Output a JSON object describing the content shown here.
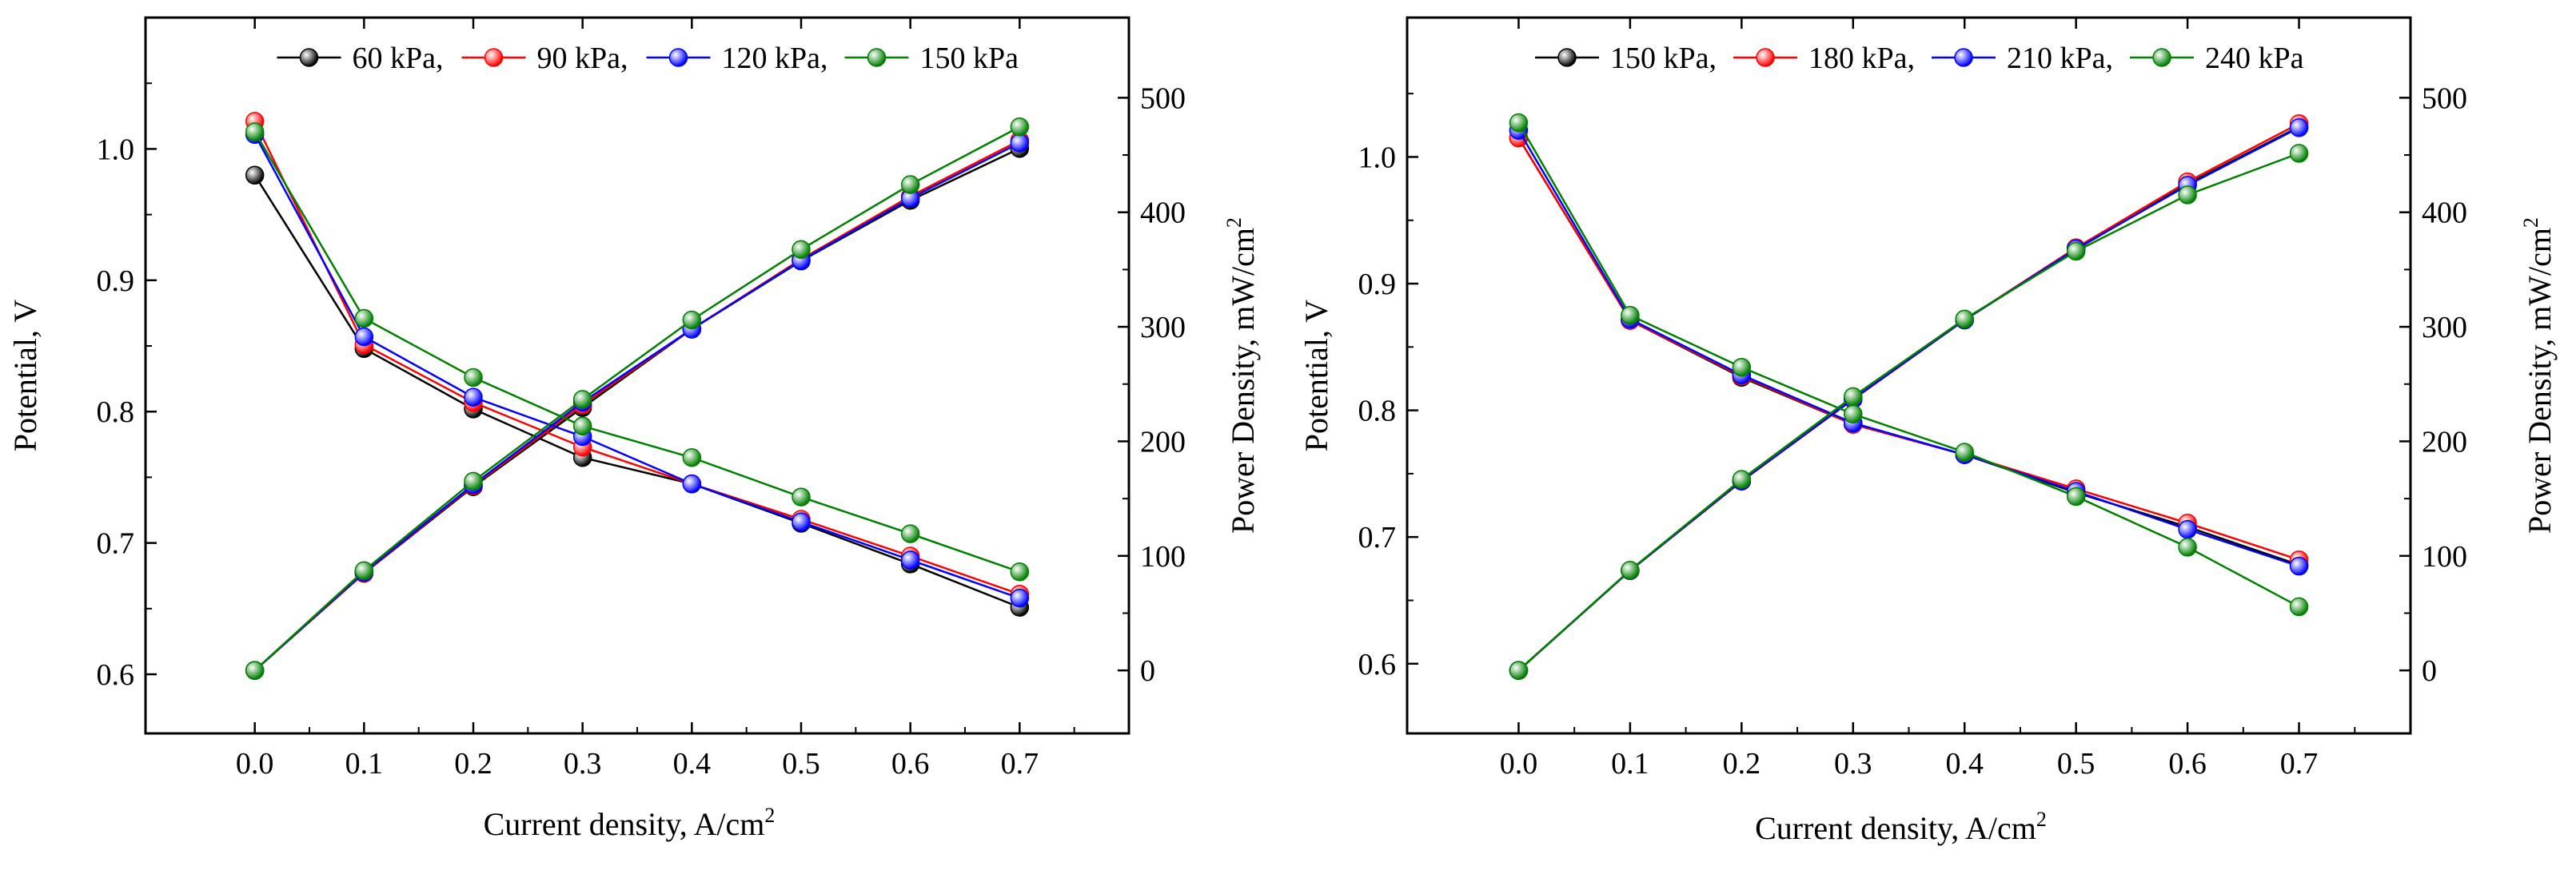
{
  "colors": {
    "60 kPa": "#000000",
    "90 kPa": "#ff0000",
    "120 kPa": "#0000ff",
    "150 kPa": "#008000",
    "180 kPa": "#ff0000",
    "210 kPa": "#0000ff",
    "240 kPa": "#008000"
  },
  "chart_data": [
    {
      "type": "line",
      "xlabel": "Current density, A/cm",
      "xlabel_sup": "2",
      "ylabel": "Potential, V",
      "y2label": "Power Density, mW/cm",
      "y2label_sup": "2",
      "xlim": [
        -0.1,
        0.8
      ],
      "ylim": [
        0.555,
        1.1
      ],
      "y2lim": [
        -55,
        570
      ],
      "xticks": [
        "0.0",
        "0.1",
        "0.2",
        "0.3",
        "0.4",
        "0.5",
        "0.6",
        "0.7"
      ],
      "yticks": [
        "0.6",
        "0.7",
        "0.8",
        "0.9",
        "1.0"
      ],
      "y2ticks": [
        "0",
        "100",
        "200",
        "300",
        "400",
        "500"
      ],
      "legend_placement": "top",
      "legend_labels": [
        "60 kPa,",
        "90 kPa,",
        "120 kPa,",
        "150 kPa"
      ],
      "x": [
        0.0,
        0.1,
        0.2,
        0.3,
        0.4,
        0.5,
        0.6,
        0.7
      ],
      "series": [
        {
          "name": "60 kPa",
          "color": "#000000",
          "potential": [
            0.98,
            0.848,
            0.802,
            0.765,
            0.745,
            0.715,
            0.684,
            0.651
          ],
          "power": [
            0,
            84.8,
            160.4,
            229.5,
            298,
            357.5,
            410.4,
            455.7
          ]
        },
        {
          "name": "90 kPa",
          "color": "#ff0000",
          "potential": [
            1.021,
            0.851,
            0.807,
            0.773,
            0.745,
            0.718,
            0.69,
            0.661
          ],
          "power": [
            0,
            85.1,
            161.4,
            231.9,
            298,
            359,
            414,
            462.7
          ]
        },
        {
          "name": "120 kPa",
          "color": "#0000ff",
          "potential": [
            1.011,
            0.857,
            0.811,
            0.781,
            0.745,
            0.716,
            0.687,
            0.658
          ],
          "power": [
            0,
            85.7,
            162.2,
            234.3,
            298,
            358,
            412.2,
            460.6
          ]
        },
        {
          "name": "150 kPa",
          "color": "#008000",
          "potential": [
            1.013,
            0.871,
            0.826,
            0.789,
            0.765,
            0.735,
            0.707,
            0.678
          ],
          "power": [
            0,
            87.1,
            165.2,
            236.7,
            306,
            367.5,
            424.2,
            474.6
          ]
        }
      ]
    },
    {
      "type": "line",
      "xlabel": "Current density, A/cm",
      "xlabel_sup": "2",
      "ylabel": "Potential, V",
      "y2label": "Power Density, mW/cm",
      "y2label_sup": "2",
      "xlim": [
        -0.1,
        0.8
      ],
      "ylim": [
        0.545,
        1.11
      ],
      "y2lim": [
        -55,
        570
      ],
      "xticks": [
        "0.0",
        "0.1",
        "0.2",
        "0.3",
        "0.4",
        "0.5",
        "0.6",
        "0.7"
      ],
      "yticks": [
        "0.6",
        "0.7",
        "0.8",
        "0.9",
        "1.0"
      ],
      "y2ticks": [
        "0",
        "100",
        "200",
        "300",
        "400",
        "500"
      ],
      "legend_placement": "top",
      "legend_labels": [
        "150 kPa,",
        "180 kPa,",
        "210 kPa,",
        "240 kPa"
      ],
      "x": [
        0.0,
        0.1,
        0.2,
        0.3,
        0.4,
        0.5,
        0.6,
        0.7
      ],
      "series": [
        {
          "name": "150 kPa",
          "color": "#000000",
          "potential": [
            1.015,
            0.871,
            0.826,
            0.789,
            0.765,
            0.735,
            0.708,
            0.678
          ],
          "power": [
            0,
            87.1,
            165.2,
            236.7,
            306,
            367.5,
            424.8,
            474.6
          ]
        },
        {
          "name": "180 kPa",
          "color": "#ff0000",
          "potential": [
            1.015,
            0.871,
            0.827,
            0.789,
            0.765,
            0.738,
            0.711,
            0.682
          ],
          "power": [
            0,
            87.1,
            165.4,
            236.7,
            306,
            369,
            426.6,
            477.4
          ]
        },
        {
          "name": "210 kPa",
          "color": "#0000ff",
          "potential": [
            1.021,
            0.872,
            0.828,
            0.79,
            0.765,
            0.736,
            0.706,
            0.677
          ],
          "power": [
            0,
            87.2,
            165.6,
            237,
            306,
            368,
            423.6,
            473.9
          ]
        },
        {
          "name": "240 kPa",
          "color": "#008000",
          "potential": [
            1.027,
            0.875,
            0.834,
            0.797,
            0.767,
            0.732,
            0.692,
            0.645
          ],
          "power": [
            0,
            87.5,
            166.8,
            239.1,
            306.8,
            366,
            415.2,
            451.5
          ]
        }
      ]
    }
  ]
}
